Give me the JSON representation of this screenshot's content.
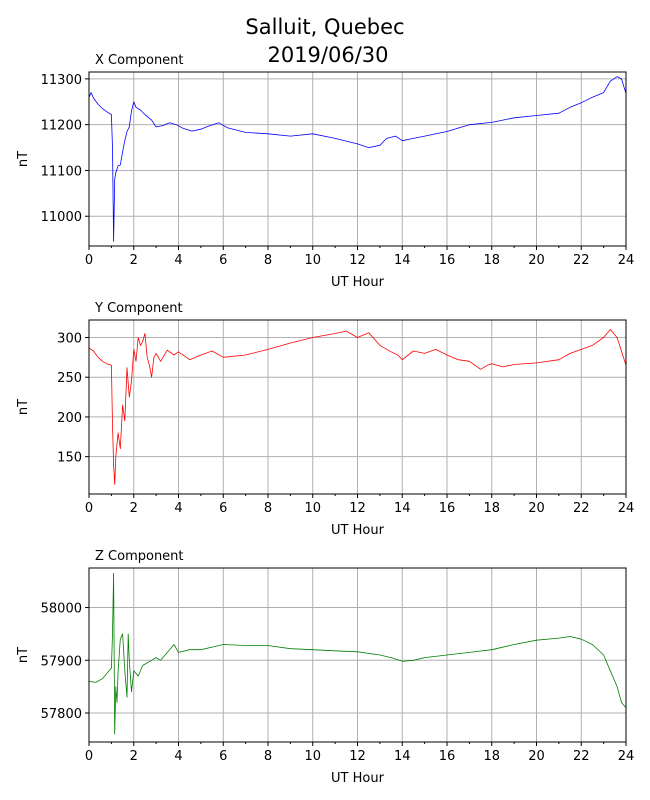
{
  "title_line1": "Salluit, Quebec",
  "title_line2": "2019/06/30",
  "chart_data": [
    {
      "type": "line",
      "title": "X Component",
      "xlabel": "UT Hour",
      "ylabel": "nT",
      "color": "#0000ff",
      "xlim": [
        0,
        24
      ],
      "ylim": [
        10935,
        11315
      ],
      "xticks": [
        0,
        2,
        4,
        6,
        8,
        10,
        12,
        14,
        16,
        18,
        20,
        22,
        24
      ],
      "yticks": [
        11000,
        11100,
        11200,
        11300
      ],
      "grid": true,
      "series": [
        {
          "x": [
            0,
            0.1,
            0.2,
            0.4,
            0.6,
            0.8,
            1.0,
            1.05,
            1.1,
            1.15,
            1.2,
            1.3,
            1.4,
            1.5,
            1.6,
            1.7,
            1.8,
            1.9,
            2.0,
            2.1,
            2.3,
            2.5,
            2.8,
            3.0,
            3.3,
            3.6,
            3.9,
            4.2,
            4.6,
            5.0,
            5.4,
            5.8,
            6.2,
            7.0,
            8.0,
            9.0,
            10.0,
            11.0,
            12.0,
            12.5,
            13.0,
            13.3,
            13.7,
            14.0,
            14.5,
            15.0,
            16.0,
            17.0,
            18.0,
            19.0,
            20.0,
            21.0,
            21.5,
            22.0,
            22.5,
            23.0,
            23.3,
            23.6,
            23.8,
            24.0
          ],
          "y": [
            11260,
            11270,
            11258,
            11245,
            11235,
            11228,
            11222,
            11150,
            10945,
            11080,
            11095,
            11110,
            11112,
            11140,
            11165,
            11185,
            11195,
            11230,
            11250,
            11238,
            11232,
            11222,
            11210,
            11195,
            11198,
            11204,
            11200,
            11192,
            11186,
            11190,
            11198,
            11204,
            11193,
            11183,
            11180,
            11175,
            11180,
            11170,
            11158,
            11150,
            11155,
            11170,
            11175,
            11165,
            11170,
            11175,
            11185,
            11200,
            11205,
            11215,
            11220,
            11225,
            11238,
            11248,
            11260,
            11270,
            11295,
            11305,
            11300,
            11268
          ]
        }
      ]
    },
    {
      "type": "line",
      "title": "Y Component",
      "xlabel": "UT Hour",
      "ylabel": "nT",
      "color": "#ff0000",
      "xlim": [
        0,
        24
      ],
      "ylim": [
        103,
        322
      ],
      "xticks": [
        0,
        2,
        4,
        6,
        8,
        10,
        12,
        14,
        16,
        18,
        20,
        22,
        24
      ],
      "yticks": [
        150,
        200,
        250,
        300
      ],
      "grid": true,
      "series": [
        {
          "x": [
            0,
            0.2,
            0.4,
            0.6,
            0.8,
            1.0,
            1.05,
            1.1,
            1.15,
            1.2,
            1.3,
            1.4,
            1.5,
            1.6,
            1.7,
            1.8,
            1.9,
            2.0,
            2.1,
            2.2,
            2.3,
            2.4,
            2.5,
            2.6,
            2.7,
            2.8,
            2.9,
            3.0,
            3.2,
            3.5,
            3.8,
            4.0,
            4.5,
            5.0,
            5.5,
            6.0,
            7.0,
            8.0,
            9.0,
            10.0,
            11.0,
            11.5,
            12.0,
            12.5,
            13.0,
            13.5,
            13.8,
            14.0,
            14.5,
            15.0,
            15.5,
            16.0,
            16.5,
            17.0,
            17.5,
            17.8,
            18.0,
            18.5,
            19.0,
            20.0,
            21.0,
            21.5,
            22.0,
            22.5,
            23.0,
            23.3,
            23.6,
            24.0
          ],
          "y": [
            287,
            283,
            275,
            270,
            267,
            265,
            190,
            140,
            115,
            150,
            180,
            160,
            215,
            195,
            262,
            225,
            245,
            285,
            270,
            300,
            290,
            295,
            305,
            275,
            265,
            250,
            275,
            280,
            270,
            284,
            278,
            282,
            272,
            278,
            283,
            275,
            278,
            285,
            293,
            300,
            305,
            308,
            300,
            306,
            290,
            282,
            278,
            272,
            283,
            280,
            285,
            278,
            272,
            270,
            260,
            265,
            267,
            263,
            266,
            268,
            272,
            280,
            285,
            290,
            300,
            310,
            300,
            265
          ]
        }
      ]
    },
    {
      "type": "line",
      "title": "Z Component",
      "xlabel": "UT Hour",
      "ylabel": "nT",
      "color": "#008000",
      "xlim": [
        0,
        24
      ],
      "ylim": [
        57745,
        58075
      ],
      "xticks": [
        0,
        2,
        4,
        6,
        8,
        10,
        12,
        14,
        16,
        18,
        20,
        22,
        24
      ],
      "yticks": [
        57800,
        57900,
        58000
      ],
      "grid": true,
      "series": [
        {
          "x": [
            0,
            0.3,
            0.6,
            0.9,
            1.0,
            1.05,
            1.1,
            1.15,
            1.2,
            1.25,
            1.3,
            1.4,
            1.5,
            1.6,
            1.7,
            1.75,
            1.8,
            1.9,
            2.0,
            2.2,
            2.4,
            2.6,
            2.8,
            3.0,
            3.2,
            3.4,
            3.6,
            3.8,
            4.0,
            4.5,
            5.0,
            5.5,
            6.0,
            7.0,
            8.0,
            9.0,
            10.0,
            11.0,
            12.0,
            13.0,
            13.5,
            14.0,
            14.5,
            15.0,
            16.0,
            17.0,
            18.0,
            19.0,
            20.0,
            21.0,
            21.5,
            22.0,
            22.5,
            23.0,
            23.3,
            23.6,
            23.8,
            24.0
          ],
          "y": [
            57860,
            57858,
            57865,
            57880,
            57885,
            57950,
            58065,
            57760,
            57850,
            57820,
            57880,
            57940,
            57950,
            57880,
            57830,
            57950,
            57900,
            57840,
            57880,
            57870,
            57890,
            57895,
            57900,
            57905,
            57900,
            57910,
            57920,
            57930,
            57915,
            57920,
            57920,
            57925,
            57930,
            57928,
            57928,
            57922,
            57920,
            57918,
            57916,
            57910,
            57905,
            57898,
            57900,
            57905,
            57910,
            57915,
            57920,
            57930,
            57938,
            57942,
            57945,
            57940,
            57930,
            57910,
            57880,
            57850,
            57820,
            57810
          ]
        }
      ]
    }
  ]
}
